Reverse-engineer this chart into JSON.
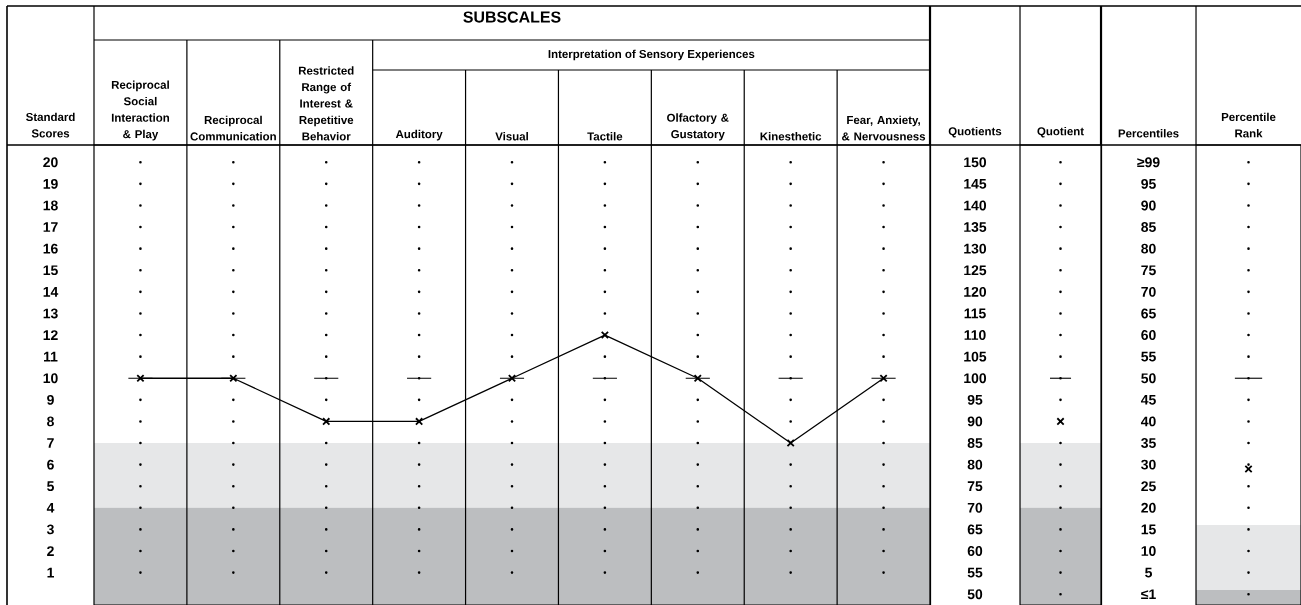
{
  "chart_data": [
    {
      "type": "line",
      "title": "SUBSCALES",
      "ylabel": "Standard Scores",
      "y2label": "Quotients",
      "categories": [
        "Reciprocal Social Interaction & Play",
        "Reciprocal Communication",
        "Restricted Range of Interest & Repetitive Behavior",
        "Auditory",
        "Visual",
        "Tactile",
        "Olfactory & Gustatory",
        "Kinesthetic",
        "Fear, Anxiety, & Nervousness"
      ],
      "values": [
        10,
        10,
        8,
        8,
        10,
        12,
        10,
        7,
        10
      ],
      "color": "#000000",
      "marker": "cross",
      "ylim": [
        -0.5,
        20.8
      ],
      "yticks": [
        1,
        2,
        3,
        4,
        5,
        6,
        7,
        8,
        9,
        10,
        11,
        12,
        13,
        14,
        15,
        16,
        17,
        18,
        19,
        20
      ],
      "y2lim": [
        47.5,
        154
      ],
      "y2ticks": [
        50,
        55,
        60,
        65,
        70,
        75,
        80,
        85,
        90,
        95,
        100,
        105,
        110,
        115,
        120,
        125,
        130,
        135,
        140,
        145,
        150
      ],
      "grid": "y",
      "bands": [
        {
          "axis": "y",
          "from": 4,
          "to": 7,
          "color": "#e6e7e8"
        },
        {
          "axis": "y",
          "from": -0.5,
          "to": 4,
          "color": "#bcbec0"
        }
      ],
      "ref_lines": [
        {
          "axis": "y",
          "value": 10
        }
      ],
      "annotations": [
        "Interpretation of Sensory Experiences"
      ]
    },
    {
      "type": "scatter",
      "xlabel": "Quotient",
      "categories": [
        null
      ],
      "values": [
        90
      ],
      "color": "#000000",
      "marker": "cross",
      "ylim": [
        47.5,
        154
      ],
      "yticks": [
        50,
        55,
        60,
        65,
        70,
        75,
        80,
        85,
        90,
        95,
        100,
        105,
        110,
        115,
        120,
        125,
        130,
        135,
        140,
        145,
        150
      ],
      "tick_labels": false,
      "grid": "y",
      "bands": [
        {
          "axis": "y",
          "from": 70,
          "to": 85,
          "color": "#e6e7e8"
        },
        {
          "axis": "y",
          "from": 47.5,
          "to": 70,
          "color": "#bcbec0"
        }
      ],
      "ref_lines": [
        {
          "axis": "y",
          "value": 100
        }
      ]
    },
    {
      "type": "scatter",
      "xlabel": "Percentile Rank",
      "ylabel": "Percentiles",
      "categories": [
        null
      ],
      "values": [
        29
      ],
      "color": "#000000",
      "marker": "cross",
      "ylim": [
        -2.5,
        104
      ],
      "yticks": [
        {
          "value": 0,
          "label": "≤1"
        },
        5,
        10,
        15,
        20,
        25,
        30,
        35,
        40,
        45,
        50,
        55,
        60,
        65,
        70,
        75,
        80,
        85,
        90,
        95,
        {
          "value": 100,
          "label": "≥99"
        }
      ],
      "tick_labels": "y",
      "grid": "y",
      "bands": [
        {
          "axis": "y",
          "from": 1,
          "to": 16,
          "color": "#e6e7e8"
        },
        {
          "axis": "y",
          "from": -2.5,
          "to": 1,
          "color": "#bcbec0"
        }
      ],
      "ref_lines": [
        {
          "axis": "y",
          "value": 50
        }
      ]
    }
  ]
}
